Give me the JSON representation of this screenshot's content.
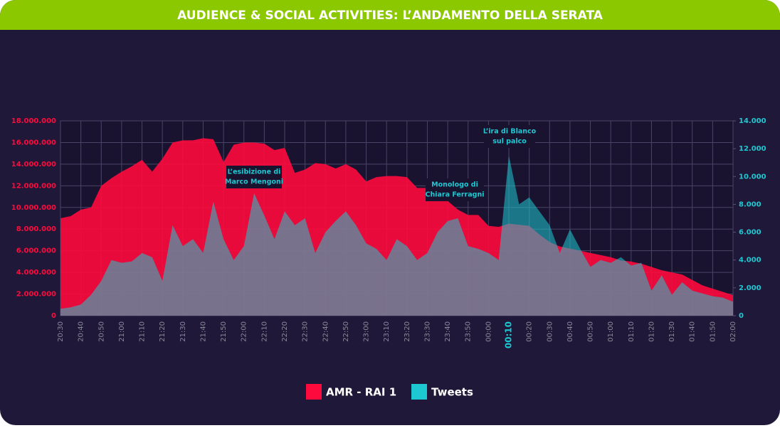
{
  "chart_data": {
    "type": "area",
    "title": "AUDIENCE & SOCIAL ACTIVITIES: L’ANDAMENTO DELLA SERATA",
    "categories": [
      "20:30",
      null,
      "20:40",
      null,
      "20:50",
      null,
      "21:00",
      null,
      "21:10",
      null,
      "21:20",
      null,
      "21:30",
      null,
      "21:40",
      null,
      "21:50",
      null,
      "22:00",
      null,
      "22:10",
      null,
      "22:20",
      null,
      "22:30",
      null,
      "22:40",
      null,
      "22:50",
      null,
      "23:00",
      null,
      "23:10",
      null,
      "23:20",
      null,
      "23:30",
      null,
      "23:40",
      null,
      "23:50",
      null,
      "00:00",
      null,
      "00:10",
      null,
      "00:20",
      null,
      "00:30",
      null,
      "00:40",
      null,
      "00:50",
      null,
      "01:00",
      null,
      "01:10",
      null,
      "01:20",
      null,
      "01:30",
      null,
      "01:40",
      null,
      "01:50",
      null,
      "02:00"
    ],
    "highlighted_category": "00:10",
    "series": [
      {
        "name": "AMR - RAI 1",
        "color": "#ff0a3c",
        "values": [
          9000000,
          9200000,
          9800000,
          10000000,
          12000000,
          12700000,
          13300000,
          13800000,
          14400000,
          13300000,
          14500000,
          16000000,
          16200000,
          16200000,
          16400000,
          16300000,
          14200000,
          15800000,
          16000000,
          16000000,
          15900000,
          15300000,
          15500000,
          13200000,
          13500000,
          14100000,
          14000000,
          13600000,
          14000000,
          13500000,
          12400000,
          12800000,
          12900000,
          12900000,
          12800000,
          11800000,
          11800000,
          11100000,
          10600000,
          9800000,
          9300000,
          9300000,
          8300000,
          8200000,
          8500000,
          8400000,
          8300000,
          7500000,
          6800000,
          6400000,
          6200000,
          6000000,
          5800000,
          5600000,
          5400000,
          5100000,
          5000000,
          4800000,
          4500000,
          4200000,
          4000000,
          3800000,
          3300000,
          2800000,
          2500000,
          2200000,
          1900000
        ]
      },
      {
        "name": "Tweets",
        "color": "#1ec8d2",
        "axis": "y2",
        "values": [
          500,
          600,
          800,
          1500,
          2500,
          4000,
          3800,
          3900,
          4500,
          4200,
          2500,
          6500,
          5000,
          5500,
          4500,
          8200,
          5500,
          4000,
          5000,
          8800,
          7200,
          5500,
          7500,
          6500,
          7000,
          4500,
          6000,
          6800,
          7500,
          6500,
          5200,
          4800,
          4000,
          5500,
          5000,
          4000,
          4500,
          6000,
          6800,
          7000,
          5000,
          4800,
          4500,
          4000,
          11500,
          8000,
          8500,
          7500,
          6500,
          4500,
          6200,
          4800,
          3500,
          4000,
          3800,
          4200,
          3600,
          3800,
          1800,
          2900,
          1500,
          2400,
          1800,
          1600,
          1400,
          1300,
          1000
        ]
      }
    ],
    "ylim": [
      0,
      18000000
    ],
    "yticks": [
      0,
      {
        "value": 2000000,
        "label": "2.000.000"
      },
      {
        "value": 4000000,
        "label": "4.000.000"
      },
      {
        "value": 6000000,
        "label": "6.000.000"
      },
      {
        "value": 8000000,
        "label": "8.000.000"
      },
      {
        "value": 10000000,
        "label": "10.000.000"
      },
      {
        "value": 12000000,
        "label": "12.000.000"
      },
      {
        "value": 14000000,
        "label": "14.000.000"
      },
      {
        "value": 16000000,
        "label": "16.000.000"
      },
      {
        "value": 18000000,
        "label": "18.000.000"
      }
    ],
    "y2lim": [
      0,
      14000
    ],
    "y2ticks": [
      0,
      {
        "value": 2000,
        "label": "2.000"
      },
      {
        "value": 4000,
        "label": "4.000"
      },
      {
        "value": 6000,
        "label": "6.000"
      },
      {
        "value": 8000,
        "label": "8.000"
      },
      {
        "value": 10000,
        "label": "10.000"
      },
      {
        "value": 12000,
        "label": "12.000"
      },
      {
        "value": 14000,
        "label": "14.000"
      }
    ],
    "grid": true,
    "legend": "bottom",
    "annotations": [
      {
        "lines": [
          "L’esibizione di",
          "Marco Mengoni"
        ]
      },
      {
        "lines": [
          "Monologo di",
          "Chiara Ferragni"
        ]
      },
      {
        "lines": [
          "L’ira di Blanco",
          "sul palco"
        ]
      }
    ]
  }
}
